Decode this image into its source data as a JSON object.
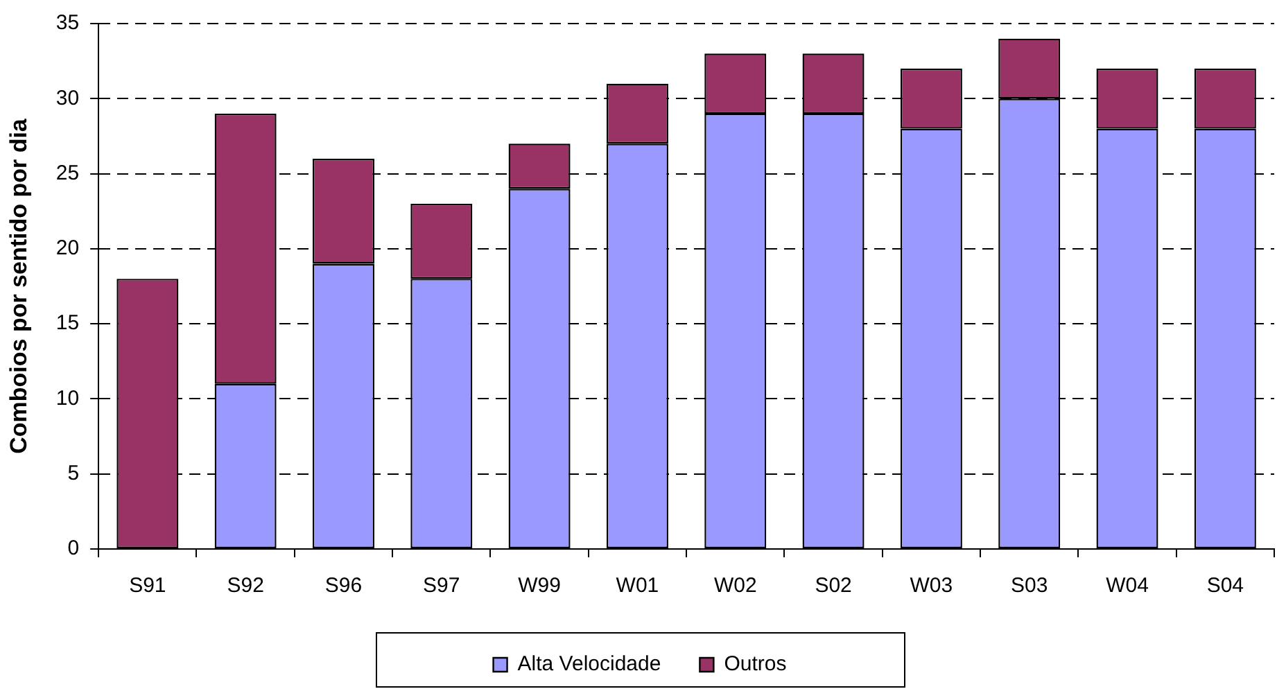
{
  "chart_data": {
    "type": "bar",
    "ylabel": "Comboios por sentido por dia",
    "categories": [
      "S91",
      "S92",
      "S96",
      "S97",
      "W99",
      "W01",
      "W02",
      "S02",
      "W03",
      "S03",
      "W04",
      "S04"
    ],
    "series": [
      {
        "name": "Alta Velocidade",
        "color": "#9999ff",
        "values": [
          0,
          11,
          19,
          18,
          24,
          27,
          29,
          29,
          28,
          30,
          28,
          28
        ]
      },
      {
        "name": "Outros",
        "color": "#993366",
        "values": [
          18,
          18,
          7,
          5,
          3,
          4,
          4,
          4,
          4,
          4,
          4,
          4
        ]
      }
    ],
    "stacked": true,
    "ylim": [
      0,
      35
    ],
    "yticks": [
      0,
      5,
      10,
      15,
      20,
      25,
      30,
      35
    ],
    "grid": "y",
    "legend": "bottom"
  }
}
